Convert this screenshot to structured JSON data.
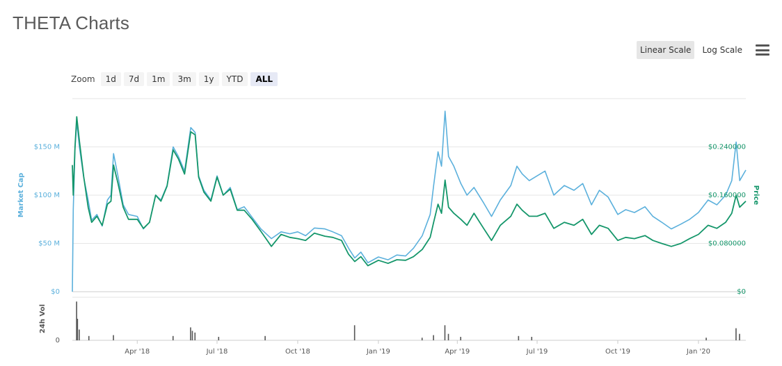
{
  "header": {
    "title": "THETA Charts"
  },
  "scale_toggle": {
    "linear_label": "Linear Scale",
    "log_label": "Log Scale",
    "active": "linear"
  },
  "zoom": {
    "label": "Zoom",
    "options": [
      "1d",
      "7d",
      "1m",
      "3m",
      "1y",
      "YTD",
      "ALL"
    ],
    "active": "ALL"
  },
  "colors": {
    "market_cap": "#5bb0dc",
    "price": "#14966a",
    "volume": "#555555",
    "grid": "#e6e6e6"
  },
  "chart_data": {
    "type": "line",
    "x_ticks": [
      "Apr '18",
      "Jul '18",
      "Oct '18",
      "Jan '19",
      "Apr '19",
      "Jul '19",
      "Oct '19",
      "Jan '20"
    ],
    "x_tick_dates": [
      "2018-04-01",
      "2018-07-01",
      "2018-10-01",
      "2019-01-01",
      "2019-04-01",
      "2019-07-01",
      "2019-10-01",
      "2020-01-01"
    ],
    "x_range": [
      "2018-01-17",
      "2020-02-24"
    ],
    "ylabel_left": "Market Cap",
    "ylabel_right": "Price",
    "ylabel_volume": "24h Vol",
    "y_left_ticks": [
      "$0",
      "$50 M",
      "$100 M",
      "$150 M"
    ],
    "y_left_values": [
      0,
      50,
      100,
      150
    ],
    "y_left_range": [
      0,
      200
    ],
    "y_right_ticks": [
      "$0",
      "$0.080000",
      "$0.160000",
      "$0.240000"
    ],
    "y_right_values": [
      0,
      0.08,
      0.16,
      0.24
    ],
    "y_right_range": [
      0,
      0.32
    ],
    "volume_ticks": [
      "0"
    ],
    "grid": true,
    "series": [
      {
        "name": "Market Cap",
        "axis": "left",
        "unit": "$ M",
        "points": [
          [
            "2018-01-17",
            0
          ],
          [
            "2018-01-18",
            85
          ],
          [
            "2018-01-20",
            148
          ],
          [
            "2018-01-22",
            176
          ],
          [
            "2018-01-25",
            150
          ],
          [
            "2018-01-30",
            118
          ],
          [
            "2018-02-04",
            95
          ],
          [
            "2018-02-08",
            74
          ],
          [
            "2018-02-14",
            80
          ],
          [
            "2018-02-20",
            68
          ],
          [
            "2018-02-26",
            95
          ],
          [
            "2018-03-02",
            100
          ],
          [
            "2018-03-05",
            143
          ],
          [
            "2018-03-10",
            120
          ],
          [
            "2018-03-16",
            90
          ],
          [
            "2018-03-22",
            80
          ],
          [
            "2018-04-01",
            78
          ],
          [
            "2018-04-08",
            65
          ],
          [
            "2018-04-15",
            72
          ],
          [
            "2018-04-22",
            100
          ],
          [
            "2018-04-28",
            95
          ],
          [
            "2018-05-05",
            110
          ],
          [
            "2018-05-12",
            150
          ],
          [
            "2018-05-18",
            140
          ],
          [
            "2018-05-25",
            125
          ],
          [
            "2018-06-01",
            170
          ],
          [
            "2018-06-06",
            165
          ],
          [
            "2018-06-10",
            120
          ],
          [
            "2018-06-16",
            105
          ],
          [
            "2018-06-24",
            95
          ],
          [
            "2018-07-01",
            120
          ],
          [
            "2018-07-08",
            100
          ],
          [
            "2018-07-16",
            108
          ],
          [
            "2018-07-24",
            85
          ],
          [
            "2018-08-01",
            88
          ],
          [
            "2018-08-10",
            77
          ],
          [
            "2018-08-20",
            65
          ],
          [
            "2018-09-01",
            55
          ],
          [
            "2018-09-12",
            62
          ],
          [
            "2018-09-22",
            60
          ],
          [
            "2018-10-01",
            62
          ],
          [
            "2018-10-10",
            58
          ],
          [
            "2018-10-20",
            66
          ],
          [
            "2018-11-01",
            65
          ],
          [
            "2018-11-10",
            62
          ],
          [
            "2018-11-20",
            58
          ],
          [
            "2018-11-28",
            45
          ],
          [
            "2018-12-05",
            35
          ],
          [
            "2018-12-12",
            41
          ],
          [
            "2018-12-20",
            30
          ],
          [
            "2019-01-01",
            36
          ],
          [
            "2019-01-12",
            33
          ],
          [
            "2019-01-22",
            38
          ],
          [
            "2019-02-01",
            37
          ],
          [
            "2019-02-10",
            45
          ],
          [
            "2019-02-20",
            58
          ],
          [
            "2019-03-01",
            80
          ],
          [
            "2019-03-05",
            110
          ],
          [
            "2019-03-10",
            145
          ],
          [
            "2019-03-14",
            130
          ],
          [
            "2019-03-18",
            187
          ],
          [
            "2019-03-22",
            140
          ],
          [
            "2019-03-28",
            130
          ],
          [
            "2019-04-05",
            112
          ],
          [
            "2019-04-12",
            100
          ],
          [
            "2019-04-20",
            108
          ],
          [
            "2019-05-01",
            92
          ],
          [
            "2019-05-10",
            78
          ],
          [
            "2019-05-20",
            95
          ],
          [
            "2019-06-01",
            110
          ],
          [
            "2019-06-08",
            130
          ],
          [
            "2019-06-14",
            122
          ],
          [
            "2019-06-22",
            115
          ],
          [
            "2019-07-01",
            120
          ],
          [
            "2019-07-10",
            125
          ],
          [
            "2019-07-20",
            100
          ],
          [
            "2019-08-01",
            110
          ],
          [
            "2019-08-12",
            105
          ],
          [
            "2019-08-22",
            112
          ],
          [
            "2019-09-01",
            90
          ],
          [
            "2019-09-10",
            105
          ],
          [
            "2019-09-20",
            98
          ],
          [
            "2019-10-01",
            80
          ],
          [
            "2019-10-10",
            85
          ],
          [
            "2019-10-20",
            82
          ],
          [
            "2019-11-01",
            88
          ],
          [
            "2019-11-10",
            78
          ],
          [
            "2019-11-20",
            72
          ],
          [
            "2019-12-01",
            65
          ],
          [
            "2019-12-12",
            70
          ],
          [
            "2019-12-22",
            75
          ],
          [
            "2020-01-01",
            82
          ],
          [
            "2020-01-12",
            95
          ],
          [
            "2020-01-22",
            90
          ],
          [
            "2020-02-01",
            100
          ],
          [
            "2020-02-08",
            115
          ],
          [
            "2020-02-13",
            155
          ],
          [
            "2020-02-17",
            115
          ],
          [
            "2020-02-24",
            126
          ]
        ]
      },
      {
        "name": "Price",
        "axis": "right",
        "unit": "$",
        "points": [
          [
            "2018-01-17",
            0.21
          ],
          [
            "2018-01-18",
            0.16
          ],
          [
            "2018-01-20",
            0.24
          ],
          [
            "2018-01-22",
            0.29
          ],
          [
            "2018-01-25",
            0.25
          ],
          [
            "2018-01-30",
            0.19
          ],
          [
            "2018-02-04",
            0.14
          ],
          [
            "2018-02-08",
            0.115
          ],
          [
            "2018-02-14",
            0.125
          ],
          [
            "2018-02-20",
            0.11
          ],
          [
            "2018-02-26",
            0.145
          ],
          [
            "2018-03-02",
            0.15
          ],
          [
            "2018-03-05",
            0.21
          ],
          [
            "2018-03-10",
            0.18
          ],
          [
            "2018-03-16",
            0.14
          ],
          [
            "2018-03-22",
            0.12
          ],
          [
            "2018-04-01",
            0.12
          ],
          [
            "2018-04-08",
            0.105
          ],
          [
            "2018-04-15",
            0.115
          ],
          [
            "2018-04-22",
            0.16
          ],
          [
            "2018-04-28",
            0.15
          ],
          [
            "2018-05-05",
            0.175
          ],
          [
            "2018-05-12",
            0.235
          ],
          [
            "2018-05-18",
            0.22
          ],
          [
            "2018-05-25",
            0.195
          ],
          [
            "2018-06-01",
            0.265
          ],
          [
            "2018-06-06",
            0.26
          ],
          [
            "2018-06-10",
            0.19
          ],
          [
            "2018-06-16",
            0.165
          ],
          [
            "2018-06-24",
            0.15
          ],
          [
            "2018-07-01",
            0.19
          ],
          [
            "2018-07-08",
            0.16
          ],
          [
            "2018-07-16",
            0.17
          ],
          [
            "2018-07-24",
            0.135
          ],
          [
            "2018-08-01",
            0.135
          ],
          [
            "2018-08-10",
            0.12
          ],
          [
            "2018-08-20",
            0.1
          ],
          [
            "2018-09-01",
            0.075
          ],
          [
            "2018-09-12",
            0.095
          ],
          [
            "2018-09-22",
            0.09
          ],
          [
            "2018-10-01",
            0.088
          ],
          [
            "2018-10-10",
            0.085
          ],
          [
            "2018-10-20",
            0.097
          ],
          [
            "2018-11-01",
            0.092
          ],
          [
            "2018-11-10",
            0.09
          ],
          [
            "2018-11-20",
            0.085
          ],
          [
            "2018-11-28",
            0.062
          ],
          [
            "2018-12-05",
            0.05
          ],
          [
            "2018-12-12",
            0.058
          ],
          [
            "2018-12-20",
            0.043
          ],
          [
            "2019-01-01",
            0.052
          ],
          [
            "2019-01-12",
            0.047
          ],
          [
            "2019-01-22",
            0.053
          ],
          [
            "2019-02-01",
            0.052
          ],
          [
            "2019-02-10",
            0.058
          ],
          [
            "2019-02-20",
            0.07
          ],
          [
            "2019-03-01",
            0.09
          ],
          [
            "2019-03-05",
            0.115
          ],
          [
            "2019-03-10",
            0.145
          ],
          [
            "2019-03-14",
            0.13
          ],
          [
            "2019-03-18",
            0.185
          ],
          [
            "2019-03-22",
            0.14
          ],
          [
            "2019-03-28",
            0.13
          ],
          [
            "2019-04-05",
            0.12
          ],
          [
            "2019-04-12",
            0.11
          ],
          [
            "2019-04-20",
            0.13
          ],
          [
            "2019-05-01",
            0.105
          ],
          [
            "2019-05-10",
            0.085
          ],
          [
            "2019-05-20",
            0.11
          ],
          [
            "2019-06-01",
            0.125
          ],
          [
            "2019-06-08",
            0.145
          ],
          [
            "2019-06-14",
            0.135
          ],
          [
            "2019-06-22",
            0.125
          ],
          [
            "2019-07-01",
            0.125
          ],
          [
            "2019-07-10",
            0.13
          ],
          [
            "2019-07-20",
            0.105
          ],
          [
            "2019-08-01",
            0.115
          ],
          [
            "2019-08-12",
            0.11
          ],
          [
            "2019-08-22",
            0.12
          ],
          [
            "2019-09-01",
            0.095
          ],
          [
            "2019-09-10",
            0.11
          ],
          [
            "2019-09-20",
            0.105
          ],
          [
            "2019-10-01",
            0.085
          ],
          [
            "2019-10-10",
            0.09
          ],
          [
            "2019-10-20",
            0.088
          ],
          [
            "2019-11-01",
            0.093
          ],
          [
            "2019-11-10",
            0.085
          ],
          [
            "2019-11-20",
            0.08
          ],
          [
            "2019-12-01",
            0.075
          ],
          [
            "2019-12-12",
            0.08
          ],
          [
            "2019-12-22",
            0.088
          ],
          [
            "2020-01-01",
            0.095
          ],
          [
            "2020-01-12",
            0.11
          ],
          [
            "2020-01-22",
            0.105
          ],
          [
            "2020-02-01",
            0.115
          ],
          [
            "2020-02-08",
            0.13
          ],
          [
            "2020-02-13",
            0.16
          ],
          [
            "2020-02-17",
            0.14
          ],
          [
            "2020-02-24",
            0.15
          ]
        ]
      },
      {
        "name": "24h Vol",
        "axis": "volume",
        "points": [
          [
            "2018-01-22",
            0.9
          ],
          [
            "2018-01-23",
            0.5
          ],
          [
            "2018-01-25",
            0.25
          ],
          [
            "2018-02-05",
            0.1
          ],
          [
            "2018-03-05",
            0.12
          ],
          [
            "2018-05-12",
            0.1
          ],
          [
            "2018-06-01",
            0.3
          ],
          [
            "2018-06-03",
            0.22
          ],
          [
            "2018-06-06",
            0.18
          ],
          [
            "2018-07-03",
            0.08
          ],
          [
            "2018-08-25",
            0.1
          ],
          [
            "2018-12-05",
            0.35
          ],
          [
            "2019-02-20",
            0.06
          ],
          [
            "2019-03-05",
            0.12
          ],
          [
            "2019-03-18",
            0.35
          ],
          [
            "2019-03-22",
            0.15
          ],
          [
            "2019-04-05",
            0.08
          ],
          [
            "2019-06-10",
            0.1
          ],
          [
            "2019-06-25",
            0.08
          ],
          [
            "2020-01-10",
            0.06
          ],
          [
            "2020-02-13",
            0.28
          ],
          [
            "2020-02-17",
            0.15
          ]
        ]
      }
    ]
  }
}
